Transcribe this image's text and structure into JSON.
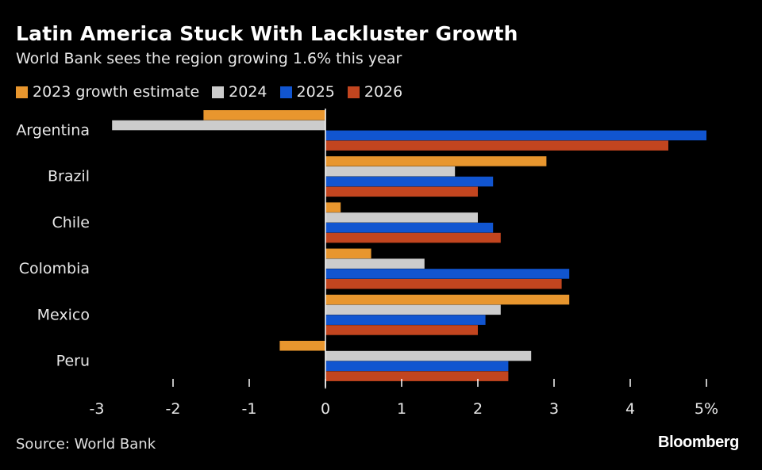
{
  "header": {
    "title": "Latin America Stuck With Lackluster Growth",
    "subtitle": "World Bank sees the region growing 1.6% this year"
  },
  "footer": {
    "source": "Source: World Bank",
    "brand": "Bloomberg"
  },
  "chart_data": {
    "type": "bar",
    "orientation": "horizontal",
    "title": "Latin America Stuck With Lackluster Growth",
    "subtitle": "World Bank sees the region growing 1.6% this year",
    "categories": [
      "Argentina",
      "Brazil",
      "Chile",
      "Colombia",
      "Mexico",
      "Peru"
    ],
    "series": [
      {
        "name": "2023 growth estimate",
        "color": "#e8962e",
        "values": [
          -1.6,
          2.9,
          0.2,
          0.6,
          3.2,
          -0.6
        ]
      },
      {
        "name": "2024",
        "color": "#cccccc",
        "values": [
          -2.8,
          1.7,
          2.0,
          1.3,
          2.3,
          2.7
        ]
      },
      {
        "name": "2025",
        "color": "#1155d0",
        "values": [
          5.0,
          2.2,
          2.2,
          3.2,
          2.1,
          2.4
        ]
      },
      {
        "name": "2026",
        "color": "#c2451f",
        "values": [
          4.5,
          2.0,
          2.3,
          3.1,
          2.0,
          2.4
        ]
      }
    ],
    "xlim": [
      -3,
      5
    ],
    "xticks": [
      "-3",
      "-2",
      "-1",
      "0",
      "1",
      "2",
      "3",
      "4",
      "5%"
    ],
    "legend_position": "top-left",
    "grid": false
  }
}
